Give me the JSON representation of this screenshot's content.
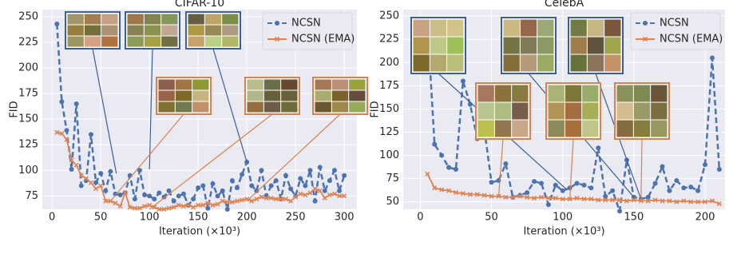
{
  "chart_data": [
    {
      "type": "line",
      "title": "CIFAR-10",
      "xlabel": "Iteration (×10³)",
      "ylabel": "FID",
      "x": [
        5,
        10,
        15,
        20,
        25,
        30,
        35,
        40,
        45,
        50,
        55,
        60,
        65,
        70,
        75,
        80,
        85,
        90,
        95,
        100,
        105,
        110,
        115,
        120,
        125,
        130,
        135,
        140,
        145,
        150,
        155,
        160,
        165,
        170,
        175,
        180,
        185,
        190,
        195,
        200,
        205,
        210,
        215,
        220,
        225,
        230,
        235,
        240,
        245,
        250,
        255,
        260,
        265,
        270,
        275,
        280,
        285,
        290,
        295,
        300
      ],
      "series": [
        {
          "name": "NCSN",
          "color": "#4c72b0",
          "values": [
            243,
            167,
            139,
            101,
            165,
            85,
            90,
            135,
            88,
            97,
            80,
            99,
            77,
            76,
            78,
            95,
            72,
            100,
            76,
            75,
            72,
            78,
            74,
            80,
            70,
            75,
            77,
            66,
            72,
            83,
            85,
            63,
            87,
            75,
            80,
            62,
            90,
            83,
            96,
            108,
            85,
            80,
            100,
            75,
            85,
            90,
            72,
            95,
            82,
            75,
            92,
            85,
            100,
            70,
            103,
            80,
            90,
            100,
            80,
            95
          ]
        },
        {
          "name": "NCSN (EMA)",
          "color": "#dd8452",
          "values": [
            137,
            136,
            130,
            110,
            105,
            95,
            92,
            88,
            82,
            85,
            70,
            70,
            68,
            65,
            78,
            64,
            63,
            63,
            65,
            66,
            64,
            62,
            62,
            63,
            64,
            66,
            65,
            66,
            64,
            66,
            66,
            68,
            66,
            67,
            70,
            69,
            69,
            70,
            71,
            72,
            70,
            72,
            74,
            73,
            73,
            72,
            72,
            72,
            70,
            74,
            77,
            76,
            78,
            82,
            80,
            73,
            76,
            77,
            75,
            75
          ]
        }
      ],
      "xlim": [
        -10,
        313
      ],
      "ylim": [
        62,
        257
      ],
      "xticks": [
        0,
        50,
        100,
        150,
        200,
        250,
        300
      ],
      "yticks": [
        75,
        100,
        125,
        150,
        175,
        200,
        225,
        250
      ],
      "grid": true,
      "legend": "upper right"
    },
    {
      "type": "line",
      "title": "CelebA",
      "xlabel": "Iteration (×10³)",
      "ylabel": "FID",
      "x": [
        5,
        10,
        15,
        20,
        25,
        30,
        35,
        40,
        45,
        50,
        55,
        60,
        65,
        70,
        75,
        80,
        85,
        90,
        95,
        100,
        105,
        110,
        115,
        120,
        125,
        130,
        135,
        140,
        145,
        150,
        155,
        160,
        165,
        170,
        175,
        180,
        185,
        190,
        195,
        200,
        205,
        210
      ],
      "series": [
        {
          "name": "NCSN",
          "color": "#4c72b0",
          "values": [
            243,
            112,
            100,
            87,
            85,
            180,
            155,
            118,
            128,
            71,
            73,
            91,
            55,
            57,
            60,
            72,
            70,
            47,
            68,
            62,
            65,
            70,
            68,
            65,
            108,
            56,
            62,
            40,
            95,
            55,
            53,
            55,
            70,
            88,
            62,
            73,
            65,
            66,
            62,
            90,
            205,
            85
          ]
        },
        {
          "name": "NCSN (EMA)",
          "color": "#dd8452",
          "values": [
            80,
            65,
            63,
            62,
            60,
            59,
            58,
            58,
            57,
            56,
            56,
            55,
            55,
            56,
            55,
            54,
            55,
            54,
            54,
            53,
            53,
            54,
            53,
            53,
            52,
            52,
            52,
            52,
            51,
            52,
            51,
            51,
            52,
            51,
            51,
            50,
            51,
            50,
            50,
            50,
            51,
            48
          ]
        }
      ],
      "xlim": [
        -12,
        214
      ],
      "ylim": [
        42,
        257
      ],
      "xticks": [
        0,
        50,
        100,
        150,
        200
      ],
      "yticks": [
        50,
        75,
        100,
        125,
        150,
        175,
        200,
        225,
        250
      ],
      "grid": true,
      "legend": "upper right"
    }
  ]
}
